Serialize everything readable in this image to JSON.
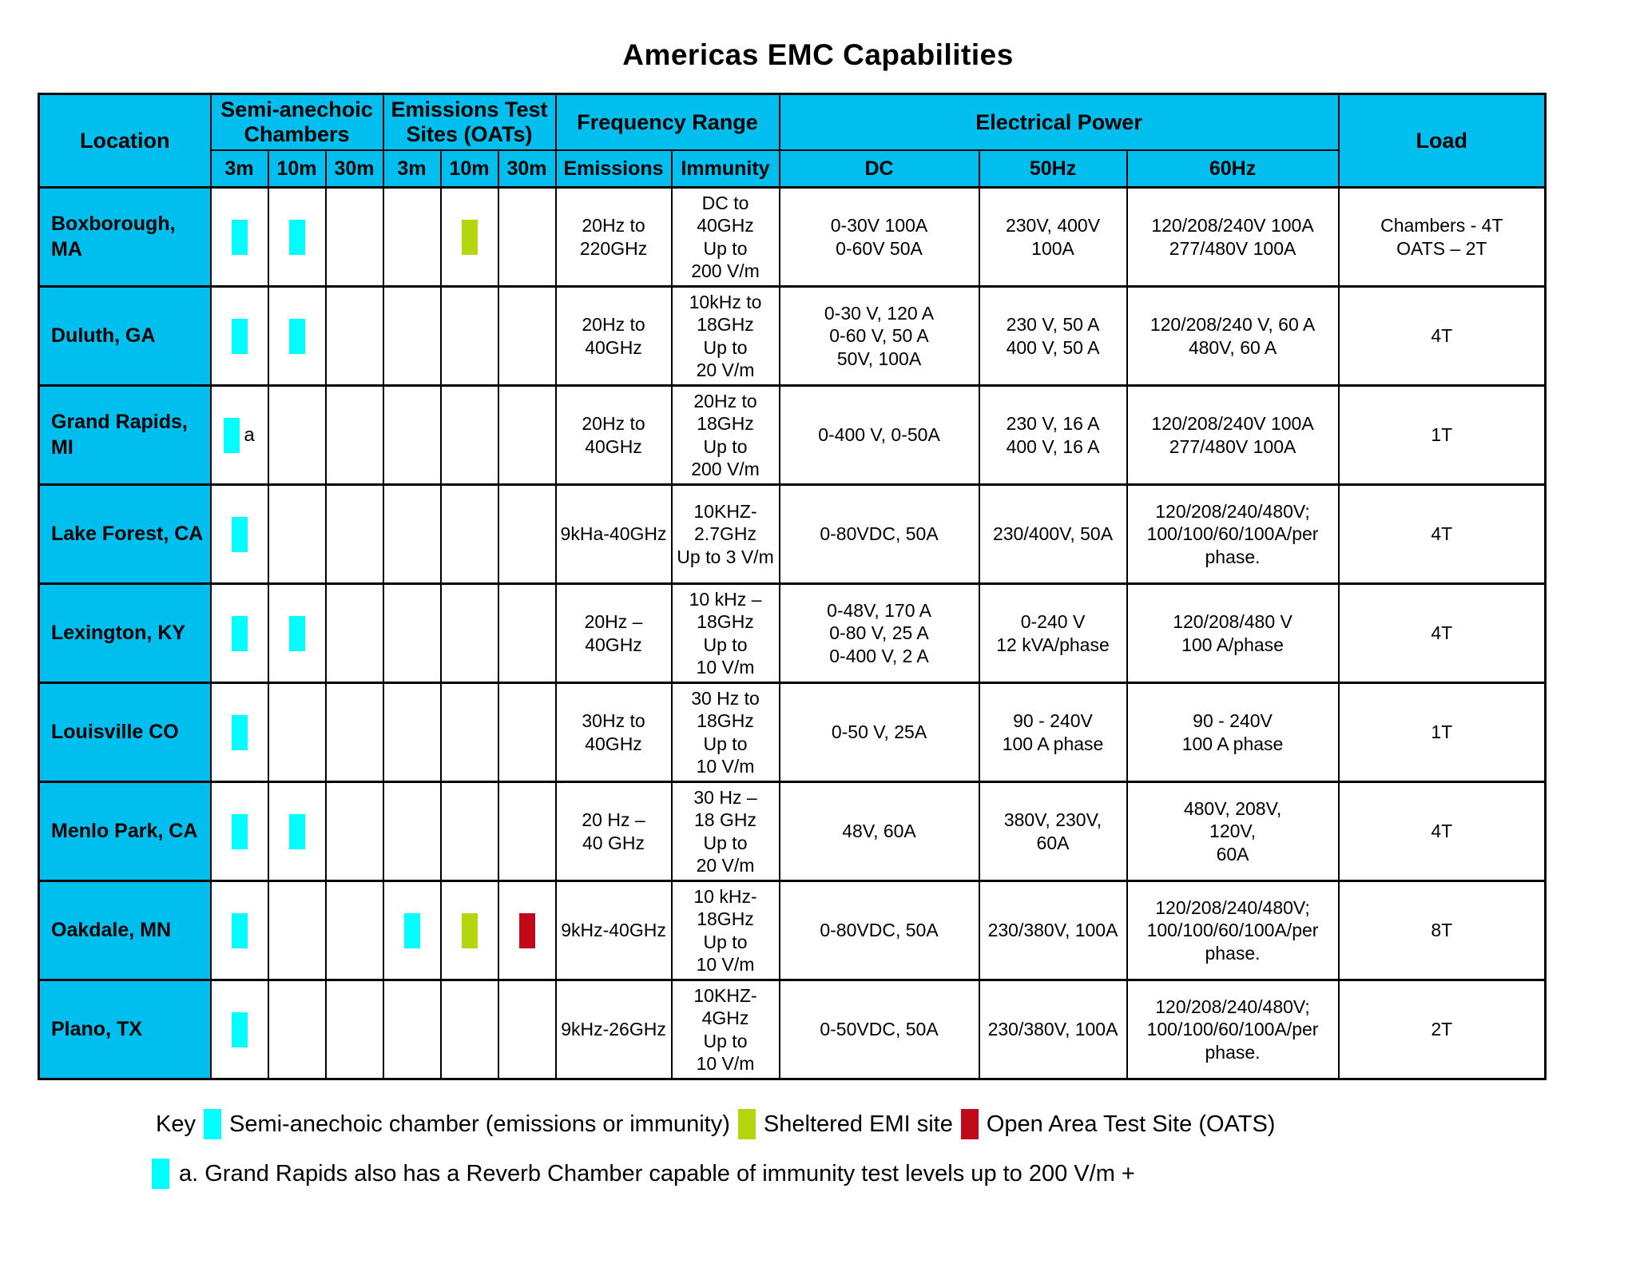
{
  "title": "Americas EMC Capabilities",
  "colors": {
    "header_background": "#00bfef",
    "marker_cyan": "#00ffff",
    "marker_green": "#b4d60e",
    "marker_red": "#c00a1a",
    "border": "#000000"
  },
  "table": {
    "headers": {
      "location": "Location",
      "sac_group": "Semi-anechoic Chambers",
      "oats_group": "Emissions Test Sites (OATs)",
      "freq_group": "Frequency Range",
      "power_group": "Electrical Power",
      "load": "Load",
      "sub": [
        "3m",
        "10m",
        "30m",
        "3m",
        "10m",
        "30m",
        "Emissions",
        "Immunity",
        "DC",
        "50Hz",
        "60Hz"
      ]
    },
    "rows": [
      {
        "location": "Boxborough,\nMA",
        "markers": [
          "cyan",
          "cyan",
          "",
          "",
          "green",
          ""
        ],
        "note": "",
        "emissions": "20Hz to\n220GHz",
        "immunity": "DC to\n40GHz\nUp to\n200 V/m",
        "dc": "0-30V 100A\n0-60V 50A",
        "hz50": "230V, 400V\n100A",
        "hz60": "120/208/240V 100A\n277/480V 100A",
        "load": "Chambers - 4T\nOATS – 2T"
      },
      {
        "location": "Duluth, GA",
        "markers": [
          "cyan",
          "cyan",
          "",
          "",
          "",
          ""
        ],
        "note": "",
        "emissions": "20Hz to\n40GHz",
        "immunity": "10kHz to\n18GHz\nUp to\n20 V/m",
        "dc": "0-30 V, 120 A\n0-60 V, 50 A\n50V, 100A",
        "hz50": "230 V, 50 A\n400 V, 50 A",
        "hz60": "120/208/240 V, 60 A\n480V, 60 A",
        "load": "4T"
      },
      {
        "location": "Grand Rapids,\nMI",
        "markers": [
          "cyan",
          "",
          "",
          "",
          "",
          ""
        ],
        "note": "a",
        "emissions": "20Hz to\n40GHz",
        "immunity": "20Hz to\n18GHz\nUp to\n200 V/m",
        "dc": "0-400 V, 0-50A",
        "hz50": "230 V, 16 A\n400 V, 16 A",
        "hz60": "120/208/240V 100A\n277/480V 100A",
        "load": "1T"
      },
      {
        "location": "Lake Forest, CA",
        "markers": [
          "cyan",
          "",
          "",
          "",
          "",
          ""
        ],
        "note": "",
        "emissions": "9kHa-40GHz",
        "immunity": "10KHZ-\n2.7GHz\nUp to 3 V/m",
        "dc": "0-80VDC, 50A",
        "hz50": "230/400V, 50A",
        "hz60": "120/208/240/480V;\n100/100/60/100A/per\nphase.",
        "load": "4T"
      },
      {
        "location": "Lexington, KY",
        "markers": [
          "cyan",
          "cyan",
          "",
          "",
          "",
          ""
        ],
        "note": "",
        "emissions": "20Hz –\n40GHz",
        "immunity": "10 kHz –\n18GHz\nUp to\n10 V/m",
        "dc": "0-48V, 170 A\n0-80 V, 25 A\n0-400 V, 2 A",
        "hz50": "0-240 V\n12 kVA/phase",
        "hz60": "120/208/480 V\n100 A/phase",
        "load": "4T"
      },
      {
        "location": "Louisville CO",
        "markers": [
          "cyan",
          "",
          "",
          "",
          "",
          ""
        ],
        "note": "",
        "emissions": "30Hz to\n40GHz",
        "immunity": "30 Hz to\n18GHz\nUp to\n10 V/m",
        "dc": "0-50 V, 25A",
        "hz50": "90 - 240V\n100 A phase",
        "hz60": "90 - 240V\n100 A phase",
        "load": "1T"
      },
      {
        "location": "Menlo Park, CA",
        "markers": [
          "cyan",
          "cyan",
          "",
          "",
          "",
          ""
        ],
        "note": "",
        "emissions": "20 Hz –\n40 GHz",
        "immunity": "30 Hz –\n18 GHz\nUp to\n20 V/m",
        "dc": "48V, 60A",
        "hz50": "380V, 230V,\n60A",
        "hz60": "480V, 208V,\n120V,\n60A",
        "load": "4T"
      },
      {
        "location": "Oakdale, MN",
        "markers": [
          "cyan",
          "",
          "",
          "cyan",
          "green",
          "red"
        ],
        "note": "",
        "emissions": "9kHz-40GHz",
        "immunity": "10 kHz-\n18GHz\nUp to\n10 V/m",
        "dc": "0-80VDC, 50A",
        "hz50": "230/380V, 100A",
        "hz60": "120/208/240/480V;\n100/100/60/100A/per\nphase.",
        "load": "8T"
      },
      {
        "location": "Plano, TX",
        "markers": [
          "cyan",
          "",
          "",
          "",
          "",
          ""
        ],
        "note": "",
        "emissions": "9kHz-26GHz",
        "immunity": "10KHZ-\n4GHz\nUp to\n10 V/m",
        "dc": "0-50VDC, 50A",
        "hz50": "230/380V, 100A",
        "hz60": "120/208/240/480V;\n100/100/60/100A/per\nphase.",
        "load": "2T"
      }
    ]
  },
  "key": {
    "label": "Key",
    "items": [
      {
        "color": "cyan",
        "text": "Semi-anechoic chamber (emissions or immunity)"
      },
      {
        "color": "green",
        "text": "Sheltered EMI site"
      },
      {
        "color": "red",
        "text": "Open Area Test Site (OATS)"
      }
    ],
    "footnote": {
      "color": "cyan",
      "text": "a.  Grand Rapids also has a Reverb Chamber capable of immunity test levels up to 200 V/m +"
    }
  }
}
